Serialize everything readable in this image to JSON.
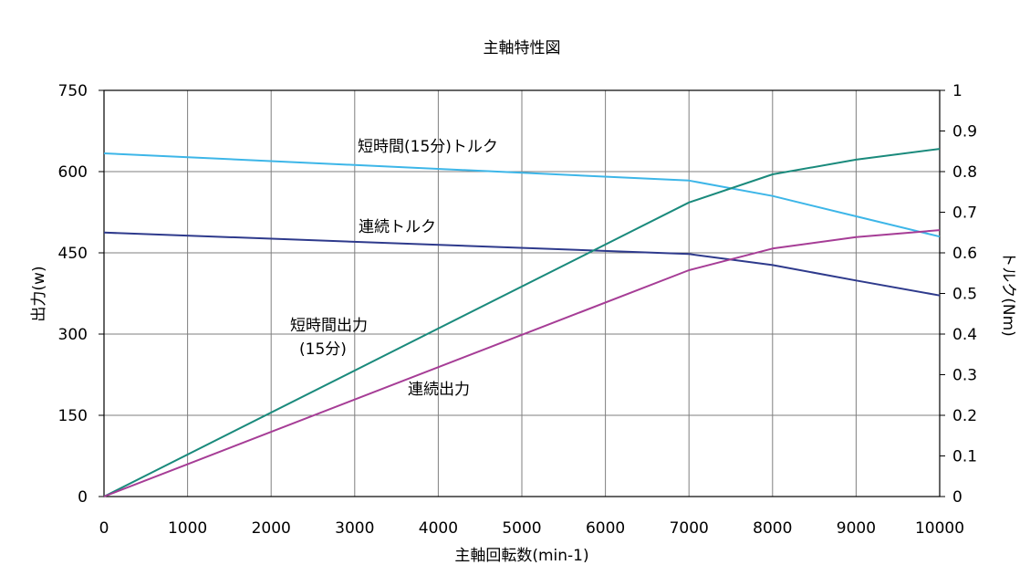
{
  "chart_data": {
    "type": "line",
    "title": "主軸特性図",
    "xlabel": "主軸回転数(min-1)",
    "ylabel_left": "出力(w)",
    "ylabel_right": "トルク(Nm)",
    "xlim": [
      0,
      10000
    ],
    "ylim_left": [
      0,
      750
    ],
    "ylim_right": [
      0,
      1
    ],
    "grid": true,
    "x_ticks": [
      "0",
      "1000",
      "2000",
      "3000",
      "4000",
      "5000",
      "6000",
      "7000",
      "8000",
      "9000",
      "10000"
    ],
    "y_left_ticks": [
      "0",
      "150",
      "300",
      "450",
      "600",
      "750"
    ],
    "y_right_ticks": [
      "0",
      "0.1",
      "0.2",
      "0.3",
      "0.4",
      "0.5",
      "0.6",
      "0.7",
      "0.8",
      "0.9",
      "1"
    ],
    "series": [
      {
        "name": "短時間(15分)トルク",
        "axis": "right",
        "color": "#3db6e8",
        "x": [
          0,
          7000,
          8000,
          9000,
          10000
        ],
        "y": [
          0.845,
          0.778,
          0.74,
          0.69,
          0.64
        ]
      },
      {
        "name": "連続トルク",
        "axis": "right",
        "color": "#2e3a8c",
        "x": [
          0,
          7000,
          8000,
          9000,
          10000
        ],
        "y": [
          0.65,
          0.597,
          0.57,
          0.532,
          0.495
        ]
      },
      {
        "name": "短時間出力(15分)",
        "axis": "left",
        "color": "#1a8a7c",
        "x": [
          0,
          7000,
          8000,
          9000,
          10000
        ],
        "y": [
          0,
          543,
          595,
          622,
          642
        ]
      },
      {
        "name": "連続出力",
        "axis": "left",
        "color": "#a63d96",
        "x": [
          0,
          7000,
          8000,
          9000,
          10000
        ],
        "y": [
          0,
          418,
          458,
          479,
          492
        ]
      }
    ],
    "annotations": [
      {
        "text": "短時間(15分)トルク",
        "series": 0
      },
      {
        "text": "連続トルク",
        "series": 1
      },
      {
        "text": "短時間出力",
        "series": 2
      },
      {
        "text": "(15分)",
        "series": 2
      },
      {
        "text": "連続出力",
        "series": 3
      }
    ]
  }
}
